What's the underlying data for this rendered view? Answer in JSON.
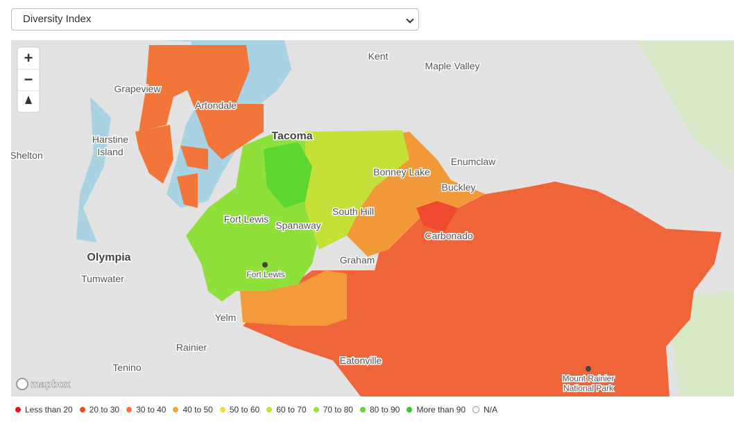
{
  "select": {
    "selected": "Diversity Index"
  },
  "map": {
    "controls": {
      "zoom_in": "+",
      "zoom_out": "−"
    },
    "places": [
      {
        "lines": [
          "Kent"
        ]
      },
      {
        "lines": [
          "Maple Valley"
        ]
      },
      {
        "lines": [
          "Grapeview"
        ]
      },
      {
        "lines": [
          "Artondale"
        ]
      },
      {
        "lines": [
          "Tacoma"
        ]
      },
      {
        "lines": [
          "Harstine",
          "Island"
        ]
      },
      {
        "lines": [
          "Shelton"
        ]
      },
      {
        "lines": [
          "Enumclaw"
        ]
      },
      {
        "lines": [
          "Bonney Lake"
        ]
      },
      {
        "lines": [
          "Buckley"
        ]
      },
      {
        "lines": [
          "South Hill"
        ]
      },
      {
        "lines": [
          "Fort Lewis"
        ]
      },
      {
        "lines": [
          "Spanaway"
        ]
      },
      {
        "lines": [
          "Carbonado"
        ]
      },
      {
        "lines": [
          "Olympia"
        ]
      },
      {
        "lines": [
          "Graham"
        ]
      },
      {
        "lines": [
          "Fort Lewis"
        ]
      },
      {
        "lines": [
          "Tumwater"
        ]
      },
      {
        "lines": [
          "Yelm"
        ]
      },
      {
        "lines": [
          "Rainier"
        ]
      },
      {
        "lines": [
          "Tenino"
        ]
      },
      {
        "lines": [
          "Eatonville"
        ]
      },
      {
        "lines": [
          "Mount Rainier",
          "National Park"
        ]
      }
    ],
    "attribution": "mapbox"
  },
  "legend": [
    {
      "label": "Less than 20",
      "color": "#e3161f"
    },
    {
      "label": "20 to 30",
      "color": "#ee4a24"
    },
    {
      "label": "30 to 40",
      "color": "#f2762f"
    },
    {
      "label": "40 to 50",
      "color": "#f5a536"
    },
    {
      "label": "50 to 60",
      "color": "#f3dc3a"
    },
    {
      "label": "60 to 70",
      "color": "#c6e03a"
    },
    {
      "label": "70 to 80",
      "color": "#9ee03a"
    },
    {
      "label": "80 to 90",
      "color": "#5ed632"
    },
    {
      "label": "More than 90",
      "color": "#27cc25"
    },
    {
      "label": "N/A",
      "color": "#ffffff"
    }
  ]
}
